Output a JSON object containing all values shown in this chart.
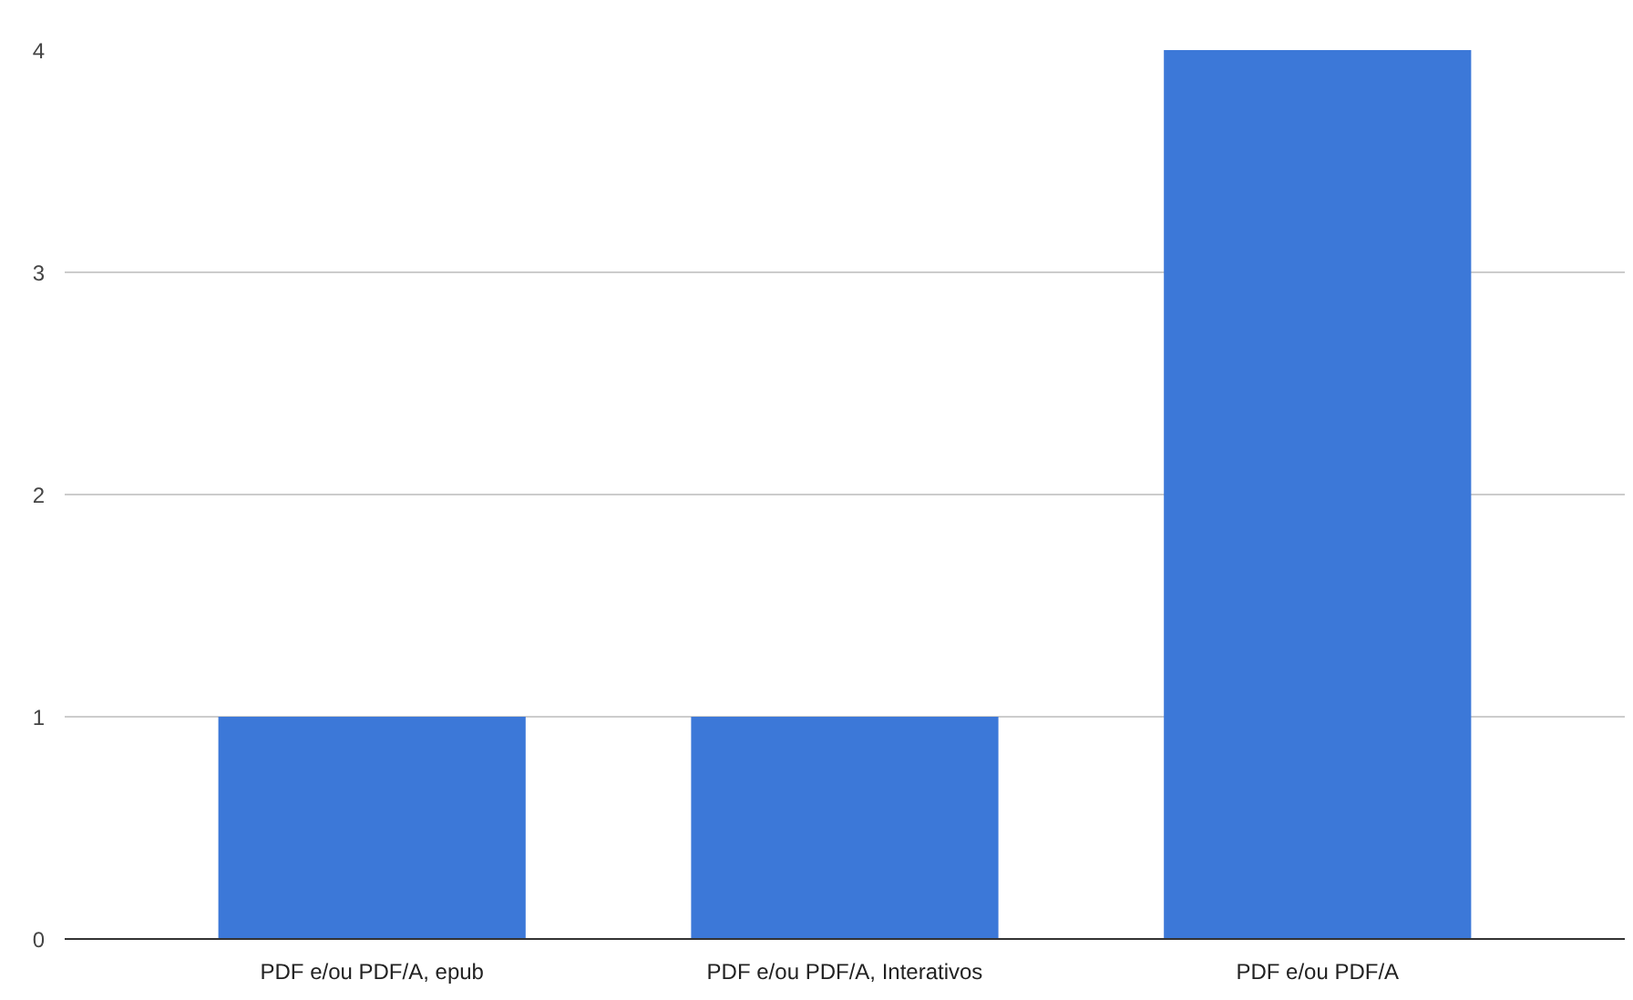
{
  "chart_data": {
    "type": "bar",
    "categories": [
      "PDF e/ou PDF/A, epub",
      "PDF e/ou PDF/A, Interativos",
      "PDF e/ou PDF/A"
    ],
    "values": [
      1,
      1,
      4
    ],
    "color": "#3c78d8",
    "ylim": [
      0,
      4
    ],
    "yticks": [
      0,
      1,
      2,
      3,
      4
    ],
    "grid": "y"
  }
}
